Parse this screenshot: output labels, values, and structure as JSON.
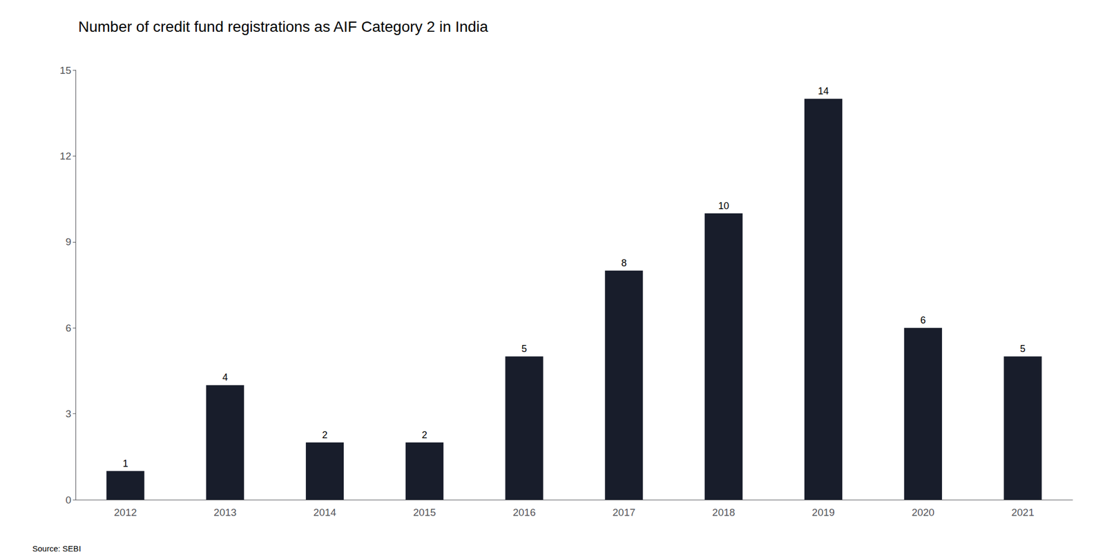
{
  "chart_data": {
    "type": "bar",
    "title": "Number of credit fund registrations as AIF Category 2 in India",
    "categories": [
      "2012",
      "2013",
      "2014",
      "2015",
      "2016",
      "2017",
      "2018",
      "2019",
      "2020",
      "2021"
    ],
    "values": [
      1,
      4,
      2,
      2,
      5,
      8,
      10,
      14,
      6,
      5
    ],
    "color": "#181d2b",
    "ylim": [
      0,
      15
    ],
    "yticks": [
      0,
      3,
      6,
      9,
      12,
      15
    ],
    "grid": false,
    "data_labels": true,
    "annotations": [
      "Source: SEBI"
    ]
  }
}
